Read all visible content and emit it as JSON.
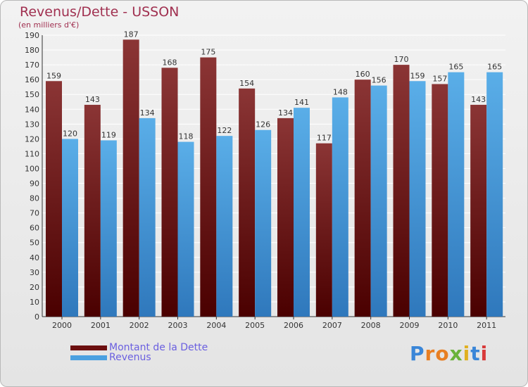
{
  "title": "Revenus/Dette - USSON",
  "subtitle": "(en milliers d'€)",
  "colors": {
    "dette_top": "#8b3535",
    "dette_bottom": "#4a0000",
    "revenus_top": "#5aaee8",
    "revenus_bottom": "#2f78bc",
    "grid": "#ffffff",
    "axis_text": "#333333",
    "title": "#a03050"
  },
  "legend": {
    "items": [
      {
        "label": "Montant de la Dette",
        "color": "#6b0f0f"
      },
      {
        "label": "Revenus",
        "color": "#4aa0e0"
      }
    ]
  },
  "logo": {
    "letters": [
      {
        "ch": "P",
        "color": "#3a86d8"
      },
      {
        "ch": "r",
        "color": "#e87e22"
      },
      {
        "ch": "o",
        "color": "#e87e22"
      },
      {
        "ch": "x",
        "color": "#6ab23a"
      },
      {
        "ch": "i",
        "color": "#e0b020"
      },
      {
        "ch": "t",
        "color": "#3a86d8"
      },
      {
        "ch": "i",
        "color": "#d83a3a"
      }
    ]
  },
  "chart_data": {
    "type": "bar",
    "title": "Revenus/Dette - USSON",
    "ylabel": "(en milliers d'€)",
    "xlabel": "",
    "ylim": [
      0,
      190
    ],
    "ytick_step": 10,
    "categories": [
      "2000",
      "2001",
      "2002",
      "2003",
      "2004",
      "2005",
      "2006",
      "2007",
      "2008",
      "2009",
      "2010",
      "2011"
    ],
    "series": [
      {
        "name": "Montant de la Dette",
        "values": [
          159,
          143,
          187,
          168,
          175,
          154,
          134,
          117,
          160,
          170,
          157,
          143
        ]
      },
      {
        "name": "Revenus",
        "values": [
          120,
          119,
          134,
          118,
          122,
          126,
          141,
          148,
          156,
          159,
          165,
          165
        ]
      }
    ],
    "grid": true,
    "legend": "bottom-left"
  }
}
